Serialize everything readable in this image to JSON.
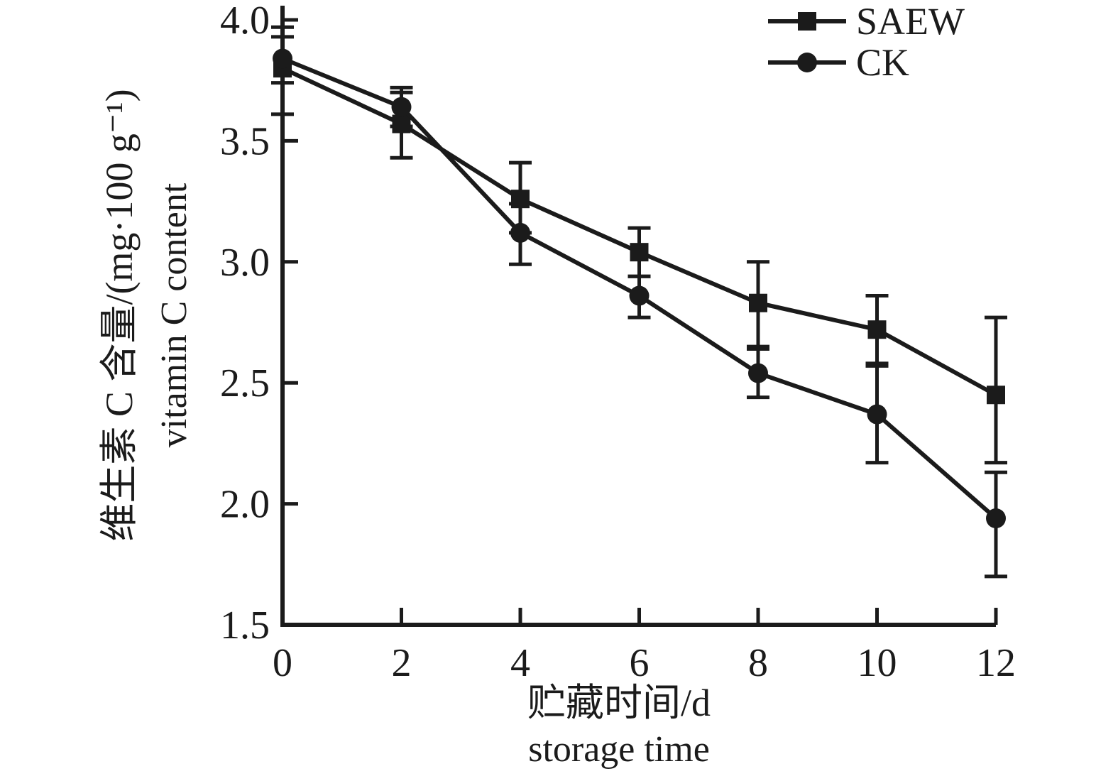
{
  "figure": {
    "background": "#ffffff",
    "ink_color": "#1b1b1b"
  },
  "chart_data": {
    "type": "line",
    "x": [
      0,
      2,
      4,
      6,
      8,
      10,
      12
    ],
    "series": [
      {
        "name": "SAEW",
        "marker": "square",
        "values": [
          3.8,
          3.57,
          3.26,
          3.04,
          2.83,
          2.72,
          2.45
        ],
        "err_up": [
          0.17,
          0.13,
          0.15,
          0.1,
          0.17,
          0.14,
          0.32
        ],
        "err_down": [
          0.19,
          0.14,
          0.14,
          0.1,
          0.18,
          0.14,
          0.28
        ]
      },
      {
        "name": "CK",
        "marker": "circle",
        "values": [
          3.84,
          3.64,
          3.12,
          2.86,
          2.54,
          2.37,
          1.94
        ],
        "err_up": [
          0.09,
          0.08,
          0.12,
          0.08,
          0.1,
          0.2,
          0.19
        ],
        "err_down": [
          0.1,
          0.08,
          0.13,
          0.09,
          0.1,
          0.2,
          0.24
        ]
      }
    ],
    "title": "",
    "xlabel_zh": "贮藏时间/d",
    "xlabel_en": "storage time",
    "ylabel_zh": "维生素 C 含量/(mg·100 g⁻¹)",
    "ylabel_en": "vitamin C content",
    "x_tick_labels": [
      "0",
      "2",
      "4",
      "6",
      "8",
      "10",
      "12"
    ],
    "y_tick_labels": [
      "1.5",
      "2.0",
      "2.5",
      "3.0",
      "3.5",
      "4.0"
    ],
    "y_ticks": [
      1.5,
      2.0,
      2.5,
      3.0,
      3.5,
      4.0
    ],
    "xlim": [
      0,
      12
    ],
    "ylim": [
      1.5,
      4.06
    ],
    "grid": false,
    "legend": {
      "position": "top-right",
      "entries": [
        "SAEW",
        "CK"
      ]
    }
  }
}
